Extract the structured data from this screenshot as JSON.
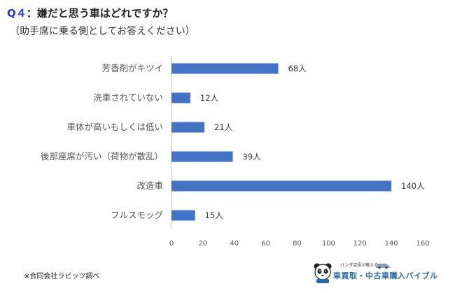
{
  "header": {
    "q_label": "Q４",
    "question": "：嫌だと思う車はどれですか？",
    "subtitle": "（助手席に乗る側としてお答えください）"
  },
  "chart_data": {
    "type": "bar",
    "orientation": "horizontal",
    "categories": [
      "芳香剤がキツイ",
      "洗車されていない",
      "車体が高いもしくは低い",
      "後部座席が汚い（荷物が散乱）",
      "改造車",
      "フルスモッグ"
    ],
    "values": [
      68,
      12,
      21,
      39,
      140,
      15
    ],
    "value_labels": [
      "68人",
      "12人",
      "21人",
      "39人",
      "140人",
      "15人"
    ],
    "xlim": [
      0,
      160
    ],
    "xticks": [
      "0",
      "20",
      "40",
      "60",
      "80",
      "100",
      "120",
      "140",
      "160"
    ],
    "title": "Q４：嫌だと思う車はどれですか？",
    "xlabel": "",
    "ylabel": "",
    "grid": false,
    "bar_color": "#4472c4"
  },
  "footer": {
    "note": "※合同会社ラビッツ調べ",
    "logo_tagline": "パンダ店長が教える",
    "logo_name": "車買取・中古車購入バイブル"
  },
  "colors": {
    "accent": "#1a3cc8",
    "bar": "#4472c4",
    "logo": "#2a6aa8"
  }
}
